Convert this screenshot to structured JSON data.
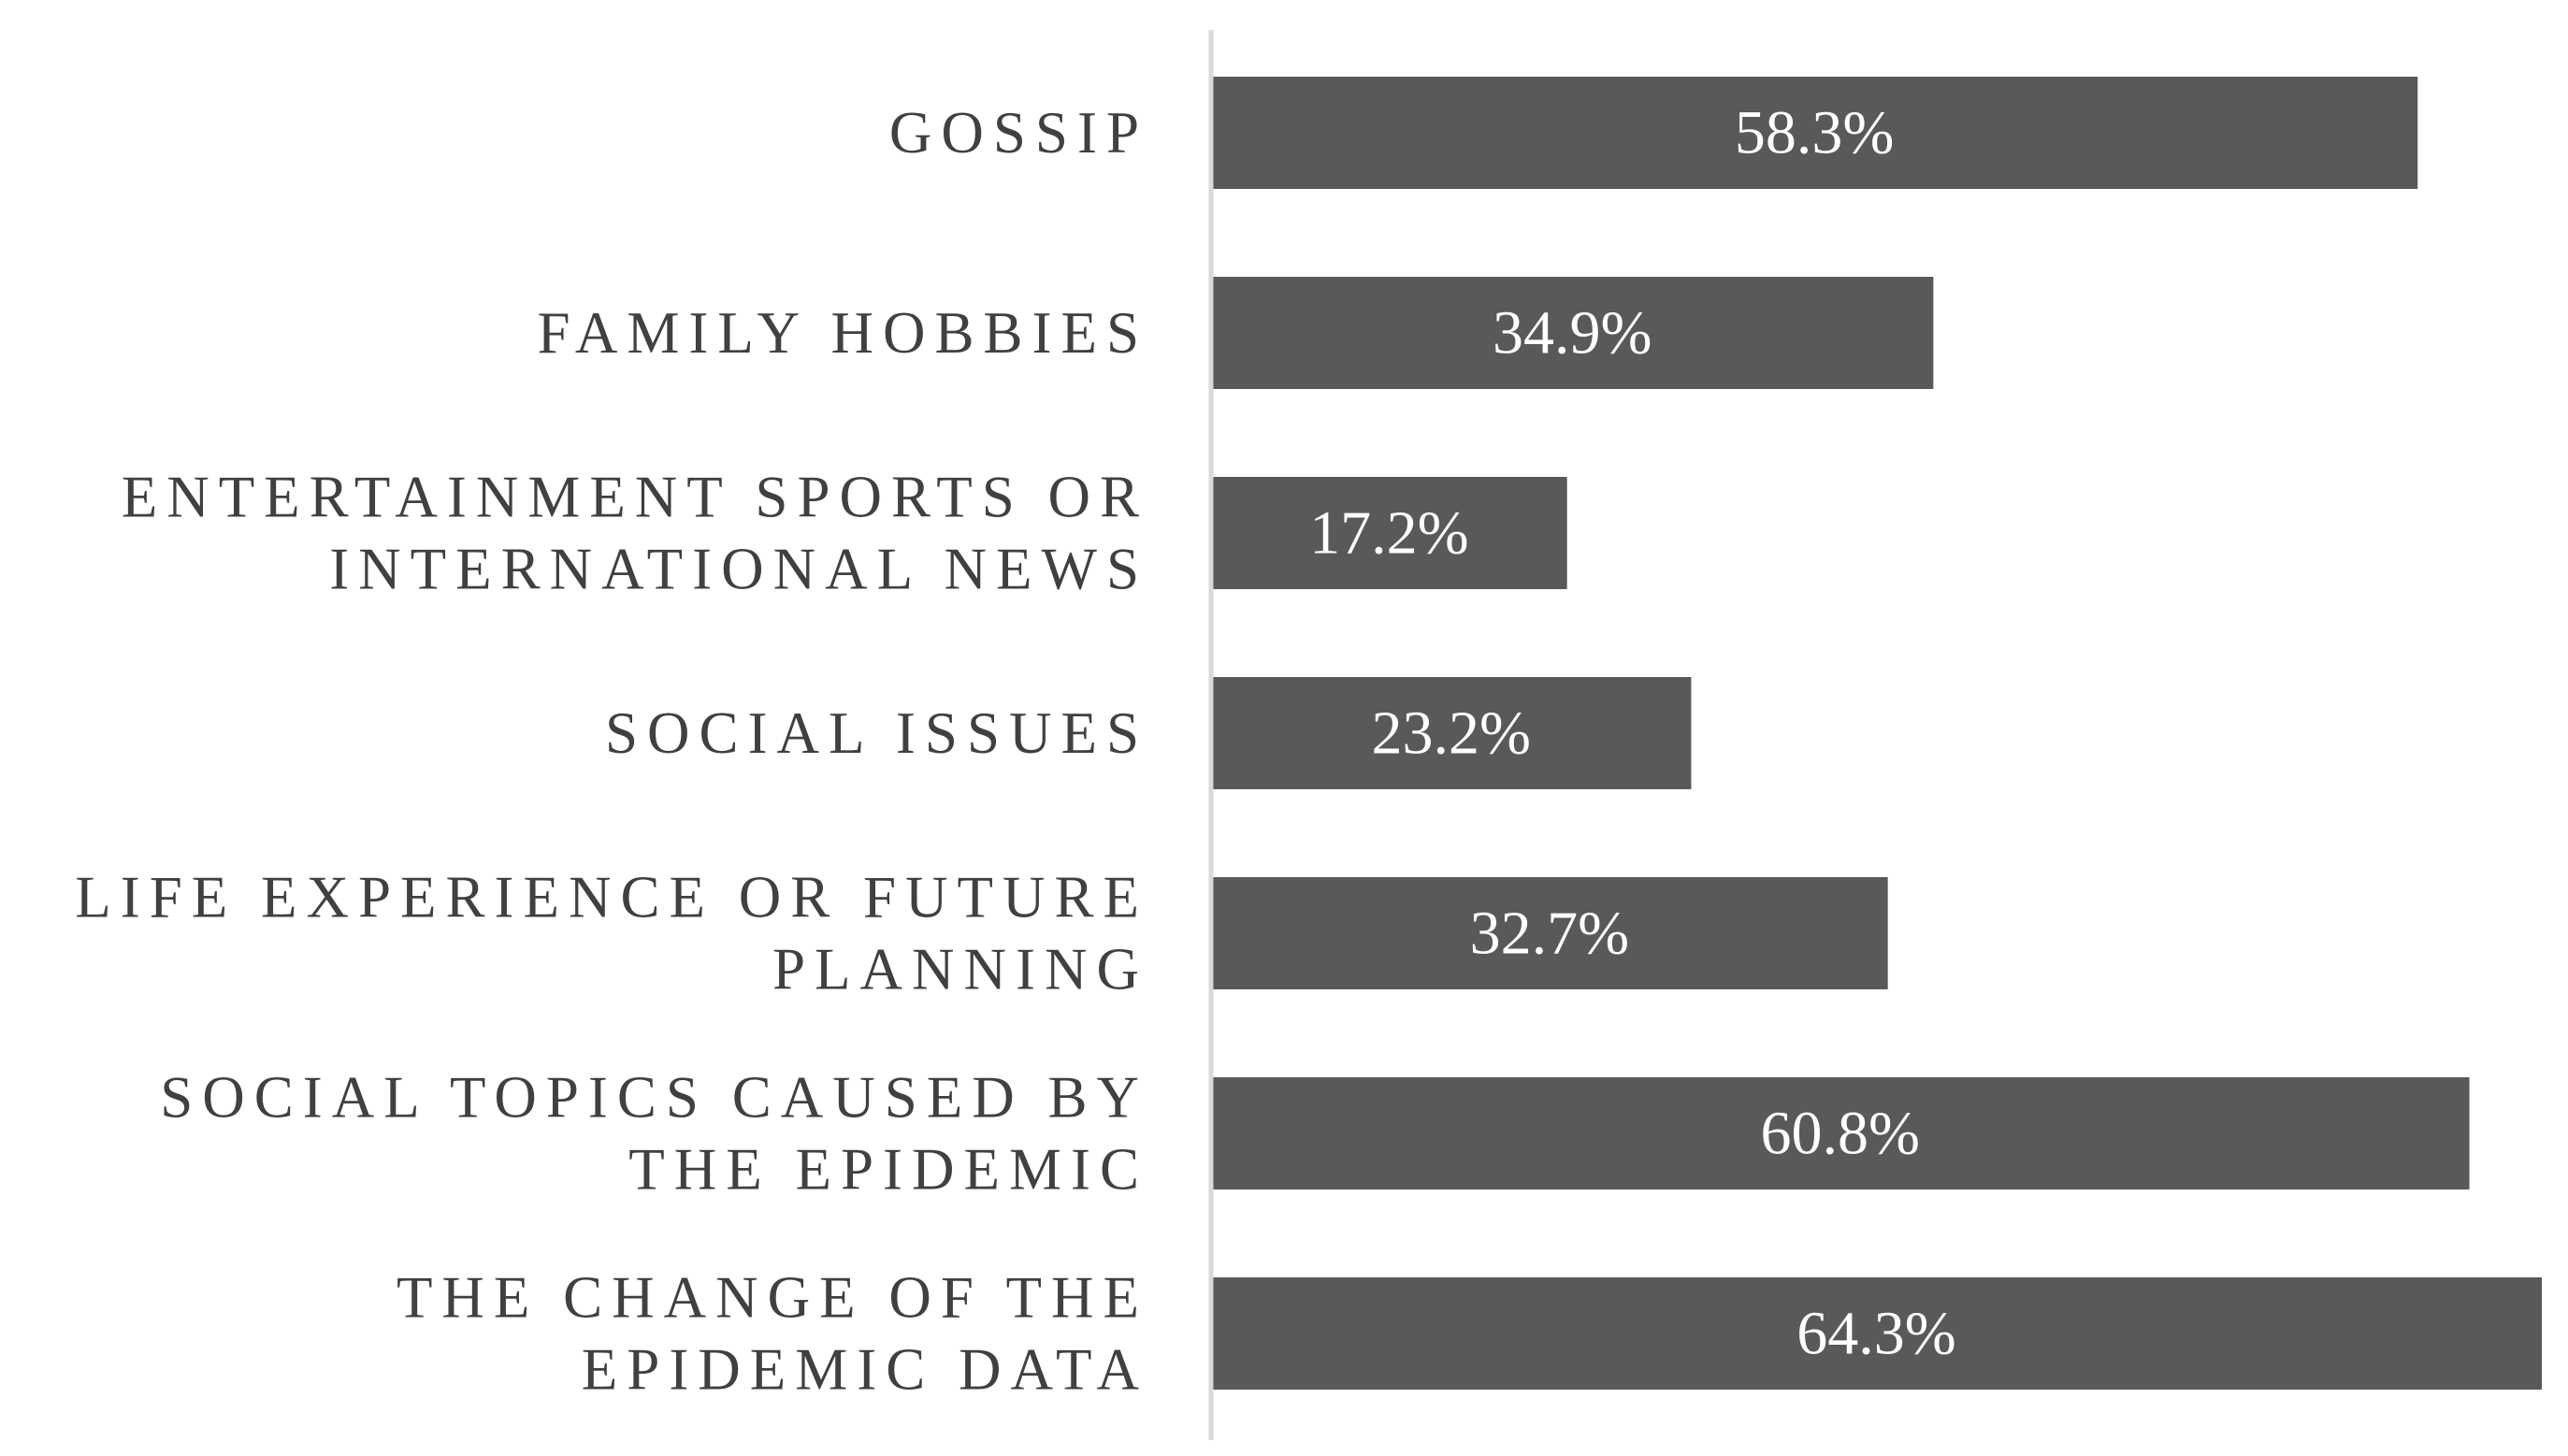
{
  "chart_data": {
    "type": "bar",
    "orientation": "horizontal",
    "categories": [
      [
        "GOSSIP"
      ],
      [
        "FAMILY HOBBIES"
      ],
      [
        "ENTERTAINMENT SPORTS OR",
        "INTERNATIONAL NEWS"
      ],
      [
        "SOCIAL ISSUES"
      ],
      [
        "LIFE EXPERIENCE OR FUTURE",
        "PLANNING"
      ],
      [
        "SOCIAL TOPICS CAUSED BY",
        "THE EPIDEMIC"
      ],
      [
        "THE CHANGE OF THE",
        "EPIDEMIC DATA"
      ]
    ],
    "values": [
      58.3,
      34.9,
      17.2,
      23.2,
      32.7,
      60.8,
      64.3
    ],
    "data_labels": [
      "58.3%",
      "34.9%",
      "17.2%",
      "23.2%",
      "32.7%",
      "60.8%",
      "64.3%"
    ],
    "xlim": [
      0,
      64.3
    ],
    "grid": false,
    "legend": "none",
    "colors": {
      "bar": "#595959",
      "axis": "#d9d9d9",
      "category_text": "#404040",
      "data_label_text": "#ffffff"
    }
  }
}
